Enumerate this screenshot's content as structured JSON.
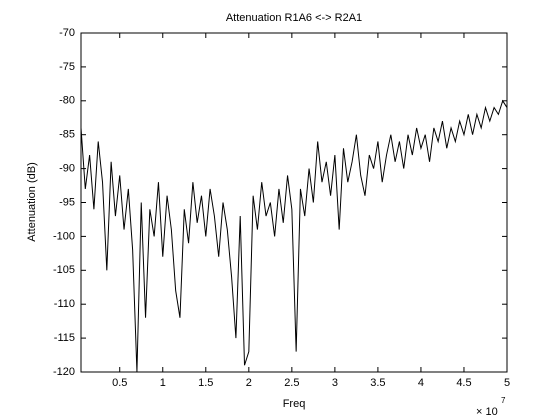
{
  "chart_data": {
    "type": "line",
    "title": "Attenuation R1A6 <-> R2A1",
    "x_label": "Freq",
    "y_label": "Attenuation (dB)",
    "x_multiplier": "× 10",
    "x_multiplier_exponent": "7",
    "xlim": [
      0.05,
      5
    ],
    "xticks": [
      0.5,
      1,
      1.5,
      2,
      2.5,
      3,
      3.5,
      4,
      4.5,
      5
    ],
    "ylim": [
      -120,
      -70
    ],
    "yticks": [
      -120,
      -115,
      -110,
      -105,
      -100,
      -95,
      -90,
      -85,
      -80,
      -75,
      -70
    ],
    "grid": false,
    "x": [
      0.05,
      0.1,
      0.15,
      0.2,
      0.25,
      0.3,
      0.35,
      0.4,
      0.45,
      0.5,
      0.55,
      0.6,
      0.65,
      0.7,
      0.75,
      0.8,
      0.85,
      0.9,
      0.95,
      1,
      1.05,
      1.1,
      1.15,
      1.2,
      1.25,
      1.3,
      1.35,
      1.4,
      1.45,
      1.5,
      1.55,
      1.6,
      1.65,
      1.7,
      1.75,
      1.8,
      1.85,
      1.9,
      1.95,
      2,
      2.05,
      2.1,
      2.15,
      2.2,
      2.25,
      2.3,
      2.35,
      2.4,
      2.45,
      2.5,
      2.55,
      2.6,
      2.65,
      2.7,
      2.75,
      2.8,
      2.85,
      2.9,
      2.95,
      3,
      3.05,
      3.1,
      3.15,
      3.2,
      3.25,
      3.3,
      3.35,
      3.4,
      3.45,
      3.5,
      3.55,
      3.6,
      3.65,
      3.7,
      3.75,
      3.8,
      3.85,
      3.9,
      3.95,
      4,
      4.05,
      4.1,
      4.15,
      4.2,
      4.25,
      4.3,
      4.35,
      4.4,
      4.45,
      4.5,
      4.55,
      4.6,
      4.65,
      4.7,
      4.75,
      4.8,
      4.85,
      4.9,
      4.95,
      5
    ],
    "series": [
      {
        "color": "#000000",
        "values": [
          -84,
          -93,
          -88,
          -96,
          -86,
          -92,
          -105,
          -89,
          -97,
          -91,
          -99,
          -93,
          -102,
          -120,
          -95,
          -112,
          -96,
          -100,
          -92,
          -103,
          -94,
          -99,
          -108,
          -112,
          -96,
          -101,
          -92,
          -98,
          -94,
          -100,
          -93,
          -97,
          -103,
          -95,
          -99,
          -106,
          -115,
          -97,
          -119,
          -117,
          -94,
          -99,
          -92,
          -97,
          -95,
          -100,
          -93,
          -98,
          -91,
          -96,
          -117,
          -93,
          -97,
          -90,
          -95,
          -86,
          -92,
          -89,
          -94,
          -88,
          -99,
          -87,
          -92,
          -89,
          -85,
          -91,
          -94,
          -88,
          -90,
          -86,
          -92,
          -88,
          -85,
          -89,
          -86,
          -90,
          -85,
          -88,
          -84,
          -87,
          -85,
          -89,
          -84,
          -86,
          -83,
          -87,
          -84,
          -86,
          -83,
          -85,
          -82,
          -85,
          -82,
          -84,
          -81,
          -83,
          -81,
          -82,
          -80,
          -81
        ]
      }
    ]
  }
}
